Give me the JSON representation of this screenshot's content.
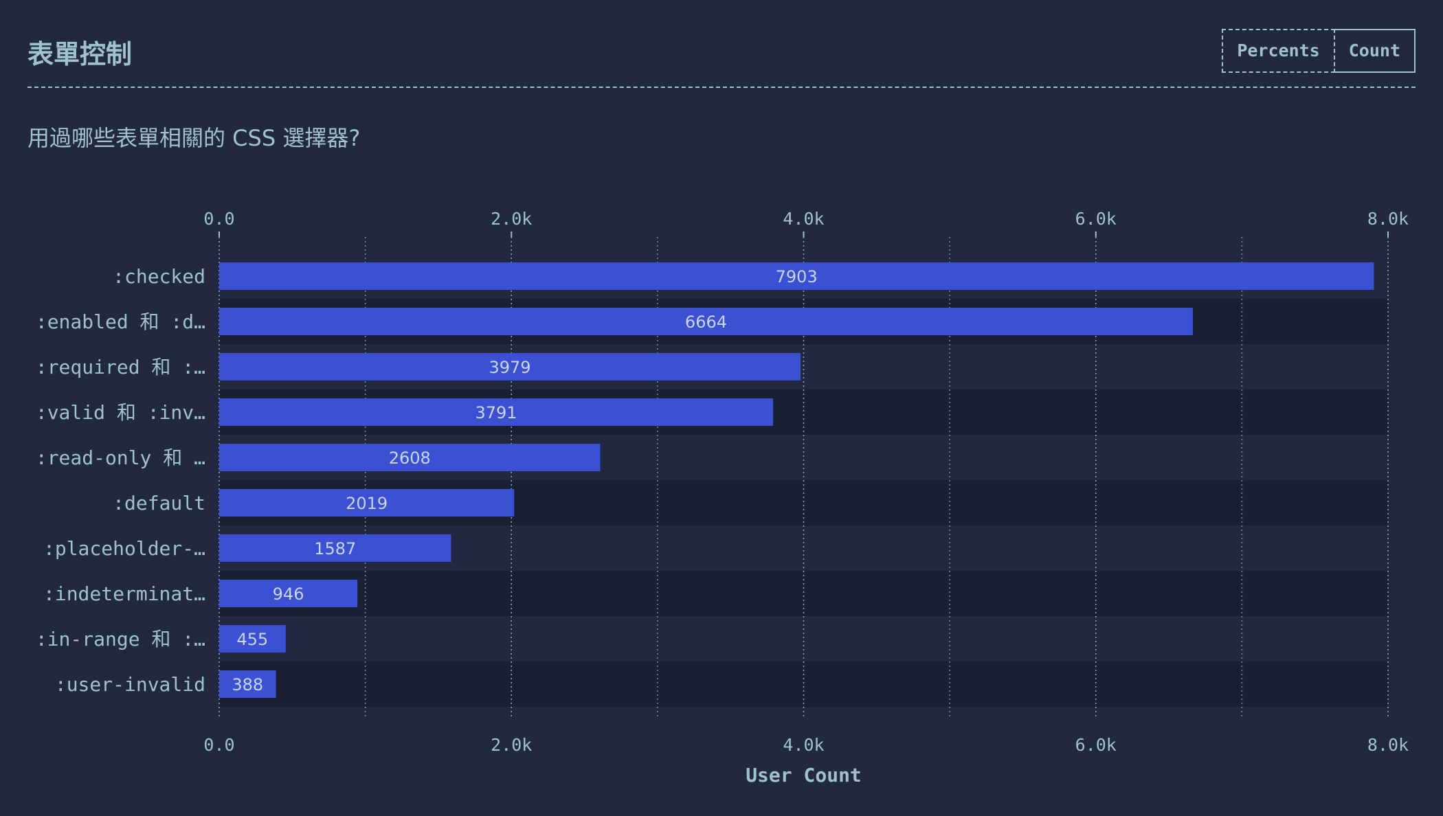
{
  "header": {
    "title": "表單控制",
    "toggle": {
      "percents_label": "Percents",
      "count_label": "Count",
      "selected": "Count"
    }
  },
  "question": "用過哪些表單相關的 CSS 選擇器?",
  "colors": {
    "background": "#232841",
    "bar": "#3c50d4",
    "text": "#9fc3cc",
    "row_alt": "#1b1f33"
  },
  "chart_data": {
    "type": "bar",
    "orientation": "horizontal",
    "categories": [
      ":checked",
      ":enabled 和 :d…",
      ":required 和 :…",
      ":valid 和 :inv…",
      ":read-only 和 …",
      ":default",
      ":placeholder-…",
      ":indeterminat…",
      ":in-range 和 :…",
      ":user-invalid"
    ],
    "values": [
      7903,
      6664,
      3979,
      3791,
      2608,
      2019,
      1587,
      946,
      455,
      388
    ],
    "xlim": [
      0,
      8000
    ],
    "tick_values": [
      0,
      2000,
      4000,
      6000,
      8000
    ],
    "tick_labels": [
      "0.0",
      "2.0k",
      "4.0k",
      "6.0k",
      "8.0k"
    ],
    "minor_gridlines": [
      1000,
      3000,
      5000,
      7000
    ],
    "xlabel": "User Count",
    "grid": true
  }
}
